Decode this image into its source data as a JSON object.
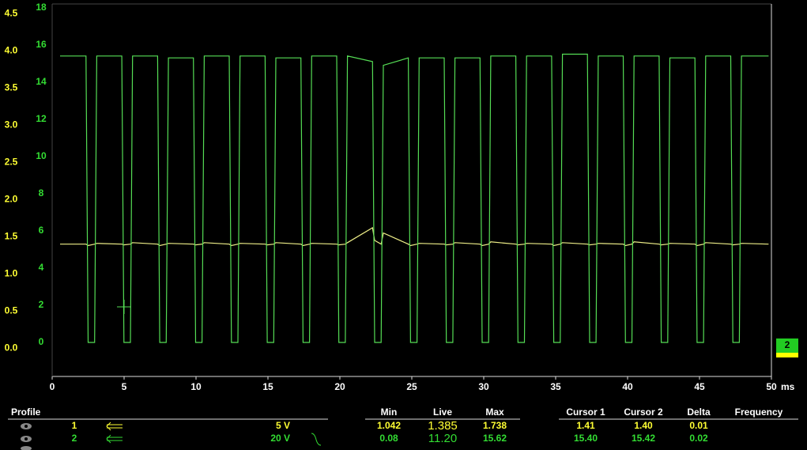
{
  "chart_data": {
    "type": "line",
    "x": [
      0.55,
      2.35,
      2.5,
      2.95,
      3.1,
      4.84,
      4.99,
      5.44,
      5.59,
      7.33,
      7.48,
      7.93,
      8.08,
      9.82,
      9.97,
      10.42,
      10.57,
      12.31,
      12.46,
      12.91,
      13.06,
      14.8,
      14.95,
      15.4,
      15.55,
      17.29,
      17.44,
      17.89,
      18.04,
      19.78,
      19.93,
      20.38,
      20.53,
      22.27,
      22.42,
      22.87,
      23.02,
      24.76,
      24.91,
      25.36,
      25.51,
      27.25,
      27.4,
      27.85,
      28.0,
      29.74,
      29.89,
      30.34,
      30.49,
      32.23,
      32.38,
      32.83,
      32.98,
      34.72,
      34.87,
      35.32,
      35.47,
      37.21,
      37.36,
      37.81,
      37.96,
      39.7,
      39.85,
      40.3,
      40.45,
      42.19,
      42.34,
      42.79,
      42.94,
      44.68,
      44.83,
      45.28,
      45.43,
      47.17,
      47.32,
      47.77,
      47.92,
      49.8
    ],
    "xlim": [
      0,
      50
    ],
    "xticks": [
      0,
      5,
      10,
      15,
      20,
      25,
      30,
      35,
      40,
      45,
      50
    ],
    "x_unit": "ms",
    "ylim": [
      -1.83,
      18.2
    ],
    "yticks": [
      0,
      2,
      4,
      6,
      8,
      10,
      12,
      14,
      16,
      18
    ],
    "y2lim": [
      -0.38,
      4.63
    ],
    "y2ticks": [
      {
        "value": 0,
        "label": "0.0"
      },
      {
        "value": 0.5,
        "label": "0.5"
      },
      {
        "value": 1,
        "label": "1.0"
      },
      {
        "value": 1.5,
        "label": "1.5"
      },
      {
        "value": 2,
        "label": "2.0"
      },
      {
        "value": 2.5,
        "label": "2.5"
      },
      {
        "value": 3,
        "label": "3.0"
      },
      {
        "value": 3.5,
        "label": "3.5"
      },
      {
        "value": 4,
        "label": "4.0"
      },
      {
        "value": 4.5,
        "label": "4.5"
      }
    ],
    "y_color": "#33dd33",
    "y2_color": "#ffff33",
    "series": [
      {
        "color": "#eeee88",
        "axis": "y2",
        "values": [
          1.4,
          1.4,
          1.38,
          1.4,
          1.41,
          1.4,
          1.39,
          1.4,
          1.42,
          1.4,
          1.38,
          1.4,
          1.41,
          1.4,
          1.39,
          1.4,
          1.42,
          1.4,
          1.38,
          1.4,
          1.41,
          1.4,
          1.39,
          1.4,
          1.42,
          1.4,
          1.38,
          1.4,
          1.41,
          1.4,
          1.39,
          1.4,
          1.42,
          1.62,
          1.45,
          1.4,
          1.55,
          1.4,
          1.38,
          1.4,
          1.41,
          1.4,
          1.39,
          1.4,
          1.42,
          1.4,
          1.38,
          1.4,
          1.43,
          1.4,
          1.39,
          1.4,
          1.41,
          1.4,
          1.38,
          1.4,
          1.42,
          1.4,
          1.39,
          1.4,
          1.41,
          1.4,
          1.38,
          1.4,
          1.43,
          1.4,
          1.39,
          1.4,
          1.41,
          1.4,
          1.38,
          1.4,
          1.42,
          1.4,
          1.39,
          1.4,
          1.41,
          1.4
        ]
      },
      {
        "color": "#55dd55",
        "values": [
          15.4,
          15.4,
          0,
          0,
          15.4,
          15.4,
          0,
          0,
          15.4,
          15.4,
          0,
          0,
          15.3,
          15.3,
          0,
          0,
          15.4,
          15.4,
          0,
          0,
          15.4,
          15.4,
          0,
          0,
          15.3,
          15.3,
          0,
          0,
          15.4,
          15.4,
          0,
          0,
          15.4,
          15.1,
          0,
          0,
          14.9,
          15.3,
          0,
          0,
          15.3,
          15.3,
          0,
          0,
          15.3,
          15.3,
          0,
          0,
          15.4,
          15.4,
          0,
          0,
          15.4,
          15.4,
          0,
          0,
          15.5,
          15.5,
          0,
          0,
          15.4,
          15.4,
          0,
          0,
          15.4,
          15.4,
          0,
          0,
          15.3,
          15.3,
          0,
          0,
          15.4,
          15.4,
          0,
          0,
          15.4,
          15.4
        ]
      }
    ]
  },
  "channel_marker": "2",
  "panel": {
    "title": "Profile",
    "stats_headers": [
      "Min",
      "Live",
      "Max"
    ],
    "cursor_headers": [
      "Cursor 1",
      "Cursor 2",
      "Delta",
      "Frequency"
    ],
    "rows": [
      {
        "channel": "1",
        "scale": "5 V",
        "stats": [
          "1.042",
          "1.385",
          "1.738"
        ],
        "cursors": [
          "1.41",
          "1.40",
          "0.01"
        ]
      },
      {
        "channel": "2",
        "scale": "20 V",
        "stats": [
          "0.08",
          "11.20",
          "15.62"
        ],
        "cursors": [
          "15.40",
          "15.42",
          "0.02"
        ]
      }
    ]
  }
}
